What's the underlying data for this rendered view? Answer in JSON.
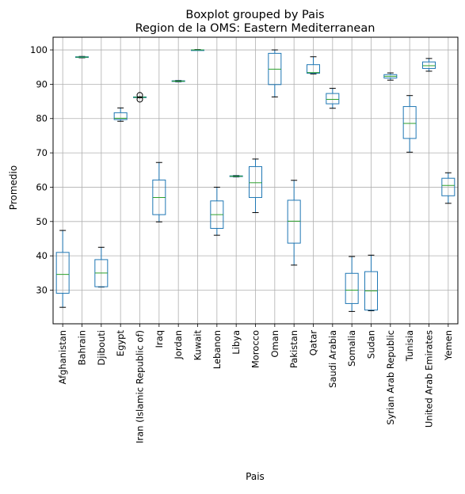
{
  "chart_data": {
    "type": "boxplot",
    "suptitle": "Boxplot grouped by Pais",
    "title": "Region de la OMS: Eastern Mediterranean",
    "xlabel": "Pais",
    "ylabel": "Promedio",
    "ylim": [
      20.2,
      103.7
    ],
    "yticks": [
      30,
      40,
      50,
      60,
      70,
      80,
      90,
      100
    ],
    "grid": true,
    "colors": {
      "box": "#1f77b4",
      "median": "#2ca02c",
      "whisker_cap": "#000000",
      "flier": "#000000",
      "grid": "#b0b0b0"
    },
    "categories": [
      "Afghanistan",
      "Bahrain",
      "Djibouti",
      "Egypt",
      "Iran (Islamic Republic of)",
      "Iraq",
      "Jordan",
      "Kuwait",
      "Lebanon",
      "Libya",
      "Morocco",
      "Oman",
      "Pakistan",
      "Qatar",
      "Saudi Arabia",
      "Somalia",
      "Sudan",
      "Syrian Arab Republic",
      "Tunisia",
      "United Arab Emirates",
      "Yemen"
    ],
    "boxes": [
      {
        "label": "Afghanistan",
        "whislo": 25.0,
        "q1": 29.1,
        "med": 34.6,
        "q3": 41.0,
        "whishi": 47.4,
        "fliers": []
      },
      {
        "label": "Bahrain",
        "whislo": 97.7,
        "q1": 97.8,
        "med": 97.9,
        "q3": 98.0,
        "whishi": 98.1,
        "fliers": []
      },
      {
        "label": "Djibouti",
        "whislo": 30.9,
        "q1": 31.0,
        "med": 35.0,
        "q3": 38.9,
        "whishi": 42.5,
        "fliers": []
      },
      {
        "label": "Egypt",
        "whislo": 79.2,
        "q1": 79.7,
        "med": 80.1,
        "q3": 81.7,
        "whishi": 83.1,
        "fliers": []
      },
      {
        "label": "Iran (Islamic Republic of)",
        "whislo": 86.1,
        "q1": 86.1,
        "med": 86.2,
        "q3": 86.3,
        "whishi": 86.3,
        "fliers": [
          85.6,
          86.8
        ]
      },
      {
        "label": "Iraq",
        "whislo": 49.9,
        "q1": 52.0,
        "med": 57.0,
        "q3": 62.1,
        "whishi": 67.2,
        "fliers": []
      },
      {
        "label": "Jordan",
        "whislo": 90.7,
        "q1": 90.8,
        "med": 90.9,
        "q3": 91.0,
        "whishi": 91.1,
        "fliers": []
      },
      {
        "label": "Kuwait",
        "whislo": 99.9,
        "q1": 100.0,
        "med": 100.0,
        "q3": 100.0,
        "whishi": 100.1,
        "fliers": []
      },
      {
        "label": "Lebanon",
        "whislo": 46.0,
        "q1": 48.0,
        "med": 52.0,
        "q3": 56.0,
        "whishi": 60.0,
        "fliers": []
      },
      {
        "label": "Libya",
        "whislo": 63.0,
        "q1": 63.1,
        "med": 63.2,
        "q3": 63.3,
        "whishi": 63.4,
        "fliers": []
      },
      {
        "label": "Morocco",
        "whislo": 52.6,
        "q1": 57.0,
        "med": 61.3,
        "q3": 66.0,
        "whishi": 68.2,
        "fliers": []
      },
      {
        "label": "Oman",
        "whislo": 86.3,
        "q1": 89.9,
        "med": 94.4,
        "q3": 99.0,
        "whishi": 100.0,
        "fliers": []
      },
      {
        "label": "Pakistan",
        "whislo": 37.3,
        "q1": 43.7,
        "med": 50.1,
        "q3": 56.2,
        "whishi": 62.0,
        "fliers": []
      },
      {
        "label": "Qatar",
        "whislo": 93.0,
        "q1": 93.2,
        "med": 93.4,
        "q3": 95.7,
        "whishi": 98.0,
        "fliers": []
      },
      {
        "label": "Saudi Arabia",
        "whislo": 83.0,
        "q1": 84.3,
        "med": 85.6,
        "q3": 87.3,
        "whishi": 88.8,
        "fliers": []
      },
      {
        "label": "Somalia",
        "whislo": 23.8,
        "q1": 26.1,
        "med": 30.0,
        "q3": 34.9,
        "whishi": 39.8,
        "fliers": []
      },
      {
        "label": "Sudan",
        "whislo": 24.0,
        "q1": 24.2,
        "med": 29.8,
        "q3": 35.4,
        "whishi": 40.2,
        "fliers": []
      },
      {
        "label": "Syrian Arab Republic",
        "whislo": 91.2,
        "q1": 91.8,
        "med": 92.3,
        "q3": 92.8,
        "whishi": 93.3,
        "fliers": []
      },
      {
        "label": "Tunisia",
        "whislo": 70.2,
        "q1": 74.2,
        "med": 78.6,
        "q3": 83.5,
        "whishi": 86.7,
        "fliers": []
      },
      {
        "label": "United Arab Emirates",
        "whislo": 93.8,
        "q1": 94.6,
        "med": 95.4,
        "q3": 96.5,
        "whishi": 97.5,
        "fliers": []
      },
      {
        "label": "Yemen",
        "whislo": 55.3,
        "q1": 57.5,
        "med": 60.5,
        "q3": 62.6,
        "whishi": 64.2,
        "fliers": []
      }
    ]
  }
}
